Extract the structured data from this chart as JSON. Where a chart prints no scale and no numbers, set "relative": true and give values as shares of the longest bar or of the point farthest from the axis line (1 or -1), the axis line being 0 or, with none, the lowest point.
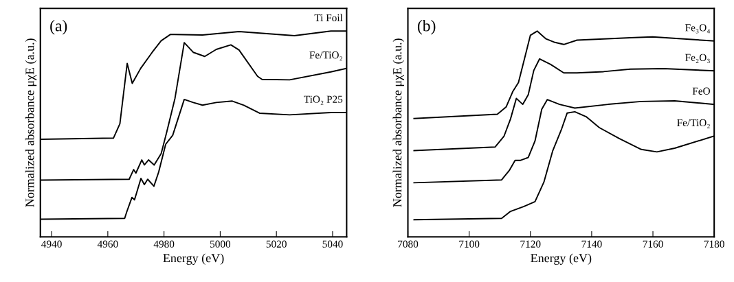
{
  "chart_data": [
    {
      "type": "line",
      "relative": true,
      "xlabel": "Energy (eV)",
      "ylabel": "Normalized absorbance μχE (a.u.)",
      "annotations": [
        "(a)"
      ],
      "xlim": [
        4936,
        5045
      ],
      "xticks": [
        4940,
        4960,
        4980,
        5000,
        5020,
        5040
      ],
      "tick_labels": "x",
      "grid": false,
      "legend": false,
      "marker": "none",
      "line_style": "solid",
      "series": [
        {
          "name": "Ti Foil",
          "color": "#000000",
          "x": [
            4936,
            4962,
            4964.3,
            4966.9,
            4968.7,
            4971.7,
            4975.8,
            4979,
            4982.3,
            4993.7,
            5006.7,
            5026.4,
            5039.4,
            5045
          ],
          "values": [
            0.474,
            0.48,
            0.55,
            0.843,
            0.746,
            0.819,
            0.897,
            0.953,
            0.984,
            0.981,
            0.998,
            0.978,
            1.0,
            1.0
          ]
        },
        {
          "name": "Fe/TiO₂",
          "color": "#000000",
          "x": [
            4936,
            4967.6,
            4969.2,
            4970,
            4972.1,
            4973,
            4974.5,
            4976.5,
            4979,
            4981,
            4983.9,
            4987.2,
            4990.4,
            4994.5,
            4998.6,
            5003.8,
            5006.7,
            5013.3,
            5014.9,
            5024.7,
            5039.4,
            5045
          ],
          "values": [
            0.276,
            0.28,
            0.327,
            0.31,
            0.374,
            0.35,
            0.374,
            0.349,
            0.405,
            0.511,
            0.673,
            0.944,
            0.897,
            0.877,
            0.911,
            0.933,
            0.908,
            0.78,
            0.765,
            0.763,
            0.802,
            0.819
          ]
        },
        {
          "name": "TiO₂ P25",
          "color": "#000000",
          "x": [
            4936,
            4966,
            4966.7,
            4968.6,
            4969.5,
            4971.8,
            4973,
            4974.2,
            4976.4,
            4978.1,
            4980.6,
            4983.1,
            4987.2,
            4990.4,
            4993.7,
            4998.6,
            5004.3,
            5008.4,
            5014,
            5024.7,
            5039.4,
            5045
          ],
          "values": [
            0.086,
            0.09,
            0.12,
            0.192,
            0.18,
            0.284,
            0.254,
            0.28,
            0.246,
            0.315,
            0.45,
            0.494,
            0.668,
            0.653,
            0.64,
            0.653,
            0.66,
            0.64,
            0.601,
            0.593,
            0.604,
            0.604
          ]
        }
      ]
    },
    {
      "type": "line",
      "relative": true,
      "xlabel": "Energy (eV)",
      "ylabel": "Normalized absorbance μχE (a.u.)",
      "annotations": [
        "(b)"
      ],
      "xlim": [
        7080,
        7180
      ],
      "xticks": [
        7080,
        7100,
        7120,
        7140,
        7160,
        7180
      ],
      "tick_labels": "x",
      "grid": false,
      "legend": false,
      "marker": "none",
      "line_style": "solid",
      "series": [
        {
          "name": "Fe₃O₄",
          "color": "#000000",
          "x": [
            7082,
            7109.2,
            7112.1,
            7114.3,
            7116.1,
            7117.9,
            7120,
            7122.2,
            7125.1,
            7128,
            7130.9,
            7135.2,
            7143.9,
            7152.6,
            7159.9,
            7180
          ],
          "values": [
            0.575,
            0.596,
            0.632,
            0.708,
            0.75,
            0.856,
            0.98,
            1.0,
            0.962,
            0.945,
            0.935,
            0.956,
            0.962,
            0.968,
            0.972,
            0.952
          ]
        },
        {
          "name": "Fe₂O₃",
          "color": "#000000",
          "x": [
            7082,
            7108.5,
            7111.4,
            7113.5,
            7115.4,
            7117.5,
            7119.3,
            7121.1,
            7123,
            7126.6,
            7130.9,
            7135.2,
            7143.9,
            7152.6,
            7163.5,
            7180
          ],
          "values": [
            0.419,
            0.437,
            0.49,
            0.573,
            0.673,
            0.644,
            0.691,
            0.809,
            0.865,
            0.838,
            0.797,
            0.797,
            0.803,
            0.815,
            0.818,
            0.807
          ]
        },
        {
          "name": "FeO",
          "color": "#000000",
          "x": [
            7082,
            7110.6,
            7113.2,
            7115,
            7116.8,
            7119.3,
            7121.5,
            7123.7,
            7125.5,
            7129.5,
            7134.5,
            7145.4,
            7156.2,
            7167.1,
            7180
          ],
          "values": [
            0.263,
            0.277,
            0.325,
            0.372,
            0.372,
            0.386,
            0.466,
            0.62,
            0.667,
            0.644,
            0.626,
            0.644,
            0.658,
            0.661,
            0.644
          ]
        },
        {
          "name": "Fe/TiO₂",
          "color": "#000000",
          "x": [
            7082,
            7110.6,
            7113.5,
            7117.9,
            7121.5,
            7124.4,
            7127.3,
            7130.2,
            7132,
            7134.5,
            7138.2,
            7142.5,
            7149,
            7156.2,
            7161.3,
            7167.1,
            7180
          ],
          "values": [
            0.083,
            0.09,
            0.124,
            0.148,
            0.171,
            0.266,
            0.419,
            0.525,
            0.602,
            0.608,
            0.584,
            0.531,
            0.478,
            0.425,
            0.413,
            0.431,
            0.49
          ]
        }
      ]
    }
  ]
}
